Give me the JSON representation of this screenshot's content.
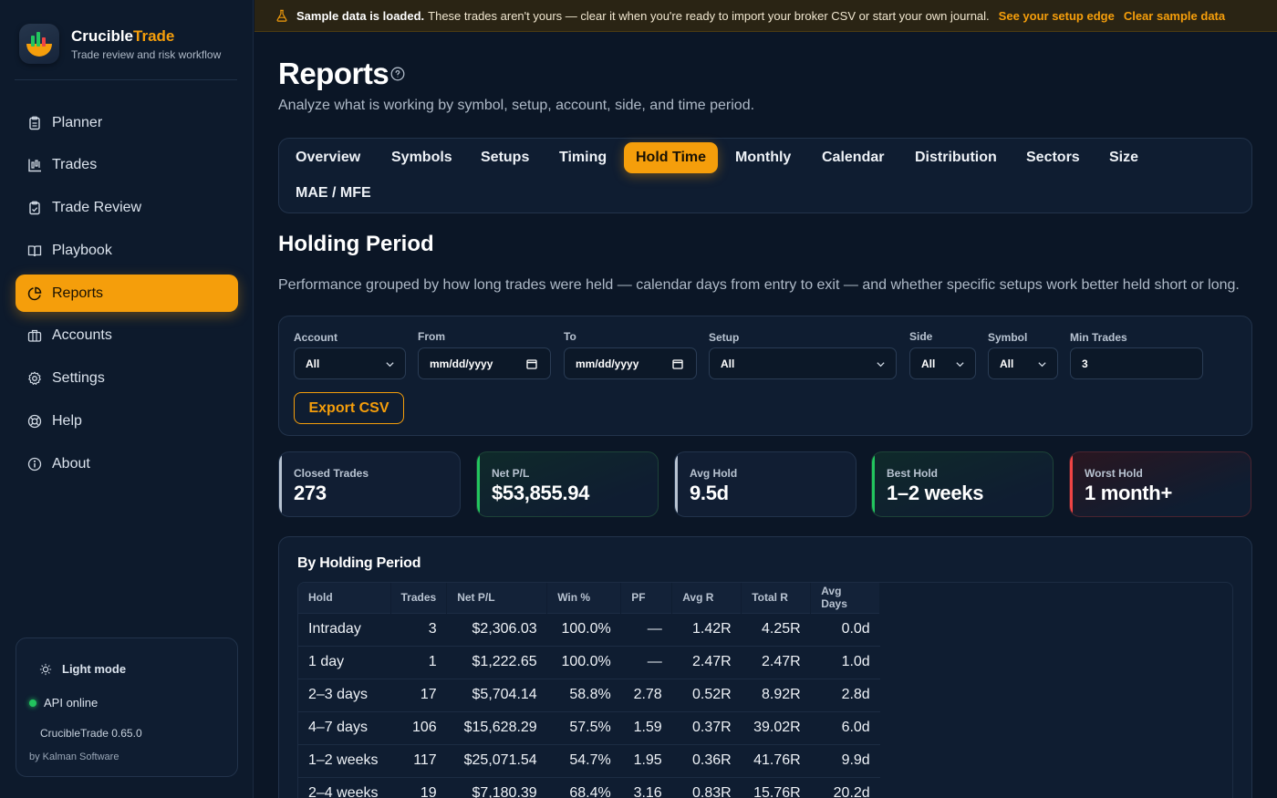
{
  "app": {
    "name_main": "Crucible",
    "name_accent": "Trade",
    "tagline": "Trade review and risk workflow"
  },
  "sidebar": {
    "items": [
      {
        "label": "Planner",
        "icon": "clipboard-icon"
      },
      {
        "label": "Trades",
        "icon": "chart-bars-icon"
      },
      {
        "label": "Trade Review",
        "icon": "clipboard-check-icon"
      },
      {
        "label": "Playbook",
        "icon": "book-icon"
      },
      {
        "label": "Reports",
        "icon": "pie-chart-icon",
        "active": true
      },
      {
        "label": "Accounts",
        "icon": "briefcase-icon"
      },
      {
        "label": "Settings",
        "icon": "gear-icon"
      },
      {
        "label": "Help",
        "icon": "lifebuoy-icon"
      },
      {
        "label": "About",
        "icon": "info-icon"
      }
    ],
    "footer": {
      "theme_toggle": "Light mode",
      "api_status": "API online",
      "version": "CrucibleTrade 0.65.0",
      "byline": "by Kalman Software"
    }
  },
  "banner": {
    "bold": "Sample data is loaded.",
    "text": "These trades aren't yours — clear it when you're ready to import your broker CSV or start your own journal.",
    "link1": "See your setup edge",
    "link2": "Clear sample data"
  },
  "page": {
    "title": "Reports",
    "subtitle": "Analyze what is working by symbol, setup, account, side, and time period."
  },
  "tabs": [
    "Overview",
    "Symbols",
    "Setups",
    "Timing",
    "Hold Time",
    "Monthly",
    "Calendar",
    "Distribution",
    "Sectors",
    "Size",
    "MAE / MFE"
  ],
  "active_tab": "Hold Time",
  "section": {
    "title": "Holding Period",
    "description": "Performance grouped by how long trades were held — calendar days from entry to exit — and whether specific setups work better held short or long."
  },
  "filters": {
    "account": {
      "label": "Account",
      "value": "All"
    },
    "from": {
      "label": "From",
      "value": "mm/dd/yyyy"
    },
    "to": {
      "label": "To",
      "value": "mm/dd/yyyy"
    },
    "setup": {
      "label": "Setup",
      "value": "All"
    },
    "side": {
      "label": "Side",
      "value": "All"
    },
    "symbol": {
      "label": "Symbol",
      "value": "All"
    },
    "min_trades": {
      "label": "Min Trades",
      "value": "3"
    },
    "export_label": "Export CSV"
  },
  "kpis": [
    {
      "label": "Closed Trades",
      "value": "273",
      "tone": "neutral"
    },
    {
      "label": "Net P/L",
      "value": "$53,855.94",
      "tone": "green"
    },
    {
      "label": "Avg Hold",
      "value": "9.5d",
      "tone": "neutral"
    },
    {
      "label": "Best Hold",
      "value": "1–2 weeks",
      "tone": "green"
    },
    {
      "label": "Worst Hold",
      "value": "1 month+",
      "tone": "red"
    }
  ],
  "table": {
    "title": "By Holding Period",
    "columns": [
      "Hold",
      "Trades",
      "Net P/L",
      "Win %",
      "PF",
      "Avg R",
      "Total R",
      "Avg Days"
    ],
    "rows": [
      [
        "Intraday",
        "3",
        "$2,306.03",
        "100.0%",
        "—",
        "1.42R",
        "4.25R",
        "0.0d"
      ],
      [
        "1 day",
        "1",
        "$1,222.65",
        "100.0%",
        "—",
        "2.47R",
        "2.47R",
        "1.0d"
      ],
      [
        "2–3 days",
        "17",
        "$5,704.14",
        "58.8%",
        "2.78",
        "0.52R",
        "8.92R",
        "2.8d"
      ],
      [
        "4–7 days",
        "106",
        "$15,628.29",
        "57.5%",
        "1.59",
        "0.37R",
        "39.02R",
        "6.0d"
      ],
      [
        "1–2 weeks",
        "117",
        "$25,071.54",
        "54.7%",
        "1.95",
        "0.36R",
        "41.76R",
        "9.9d"
      ],
      [
        "2–4 weeks",
        "19",
        "$7,180.39",
        "68.4%",
        "3.16",
        "0.83R",
        "15.76R",
        "20.2d"
      ]
    ]
  },
  "colors": {
    "accent": "#f59e0b",
    "background": "#0b1626",
    "positive": "#22c55e",
    "negative": "#ef4444"
  }
}
